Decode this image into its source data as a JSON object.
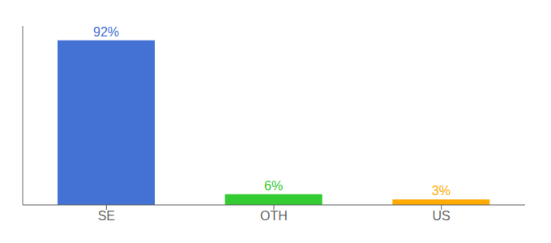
{
  "chart_data": {
    "type": "bar",
    "categories": [
      "SE",
      "OTH",
      "US"
    ],
    "values": [
      92,
      6,
      3
    ],
    "value_labels": [
      "92%",
      "6%",
      "3%"
    ],
    "colors": [
      "#4472d4",
      "#33cc33",
      "#ffaa00"
    ],
    "ylim": [
      0,
      100
    ],
    "data_labels": true,
    "tick_labels": "x",
    "grid": false
  }
}
